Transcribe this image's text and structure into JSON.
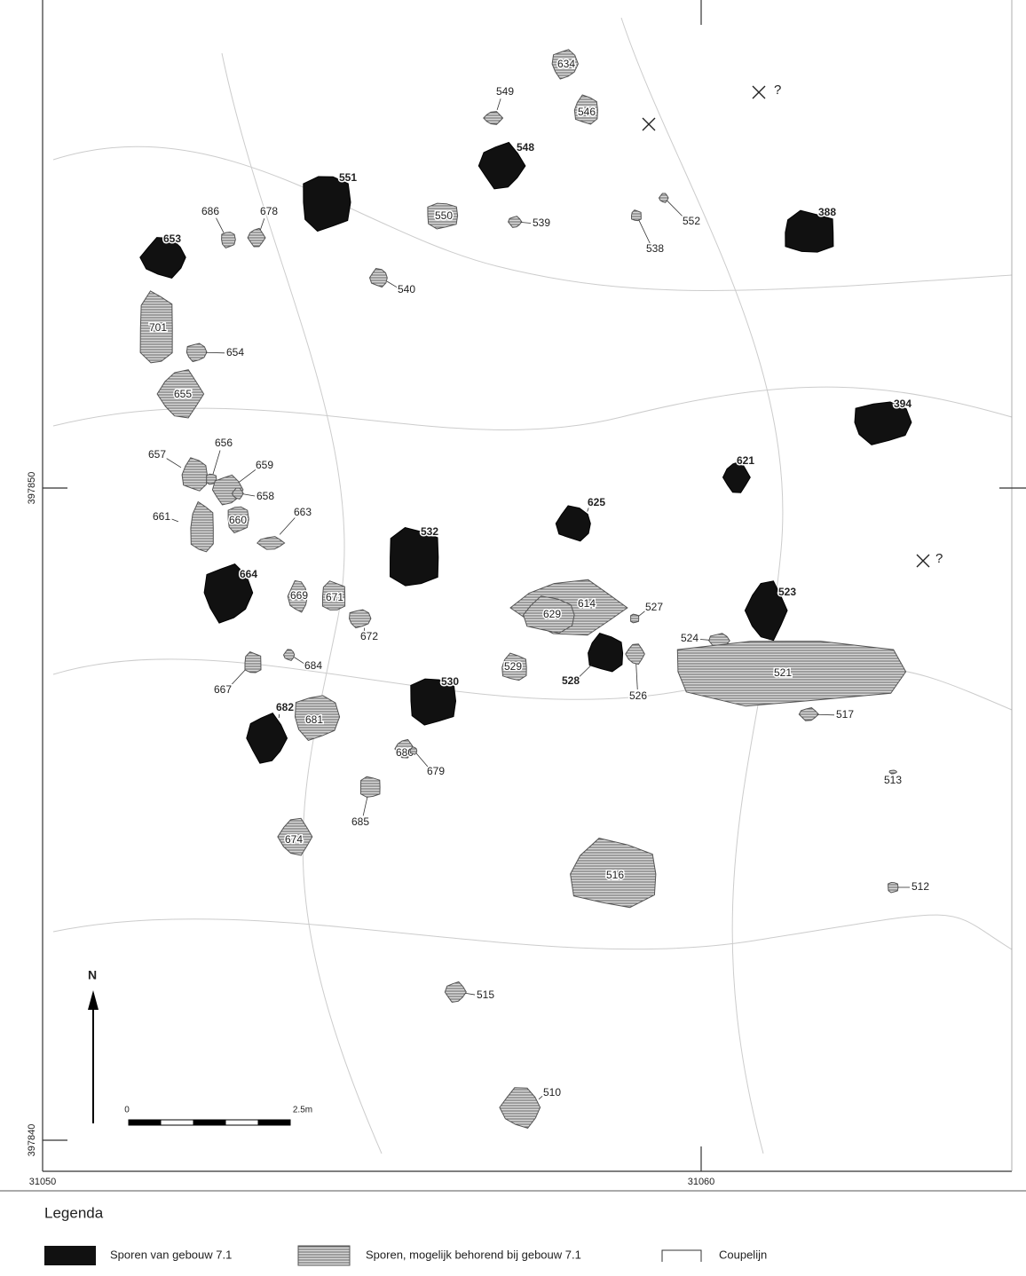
{
  "map": {
    "grid_labels": {
      "x": [
        "31050",
        "31060"
      ],
      "y": [
        "397850",
        "397840"
      ]
    },
    "north": "N",
    "scale": [
      "0",
      "2.5m"
    ],
    "query_marks": [
      "?",
      "?"
    ],
    "legend": {
      "title": "Legenda",
      "items": [
        {
          "label": "Sporen van gebouw 7.1",
          "features": [
            "551",
            "548",
            "653",
            "388",
            "394",
            "621",
            "625",
            "532",
            "664",
            "523",
            "528",
            "530",
            "682"
          ]
        },
        {
          "label": "Sporen, mogelijk behorend bij gebouw 7.1",
          "features": [
            "634",
            "549",
            "546",
            "550",
            "539",
            "552",
            "538",
            "686",
            "678",
            "540",
            "701",
            "654",
            "655",
            "657",
            "656",
            "659",
            "658",
            "661",
            "660",
            "663",
            "669",
            "671",
            "672",
            "614",
            "629",
            "527",
            "524",
            "526",
            "529",
            "521",
            "517",
            "684",
            "667",
            "681",
            "680",
            "679",
            "685",
            "513",
            "674",
            "516",
            "512",
            "515",
            "510"
          ]
        },
        {
          "label": "Coupelijn"
        }
      ]
    }
  }
}
